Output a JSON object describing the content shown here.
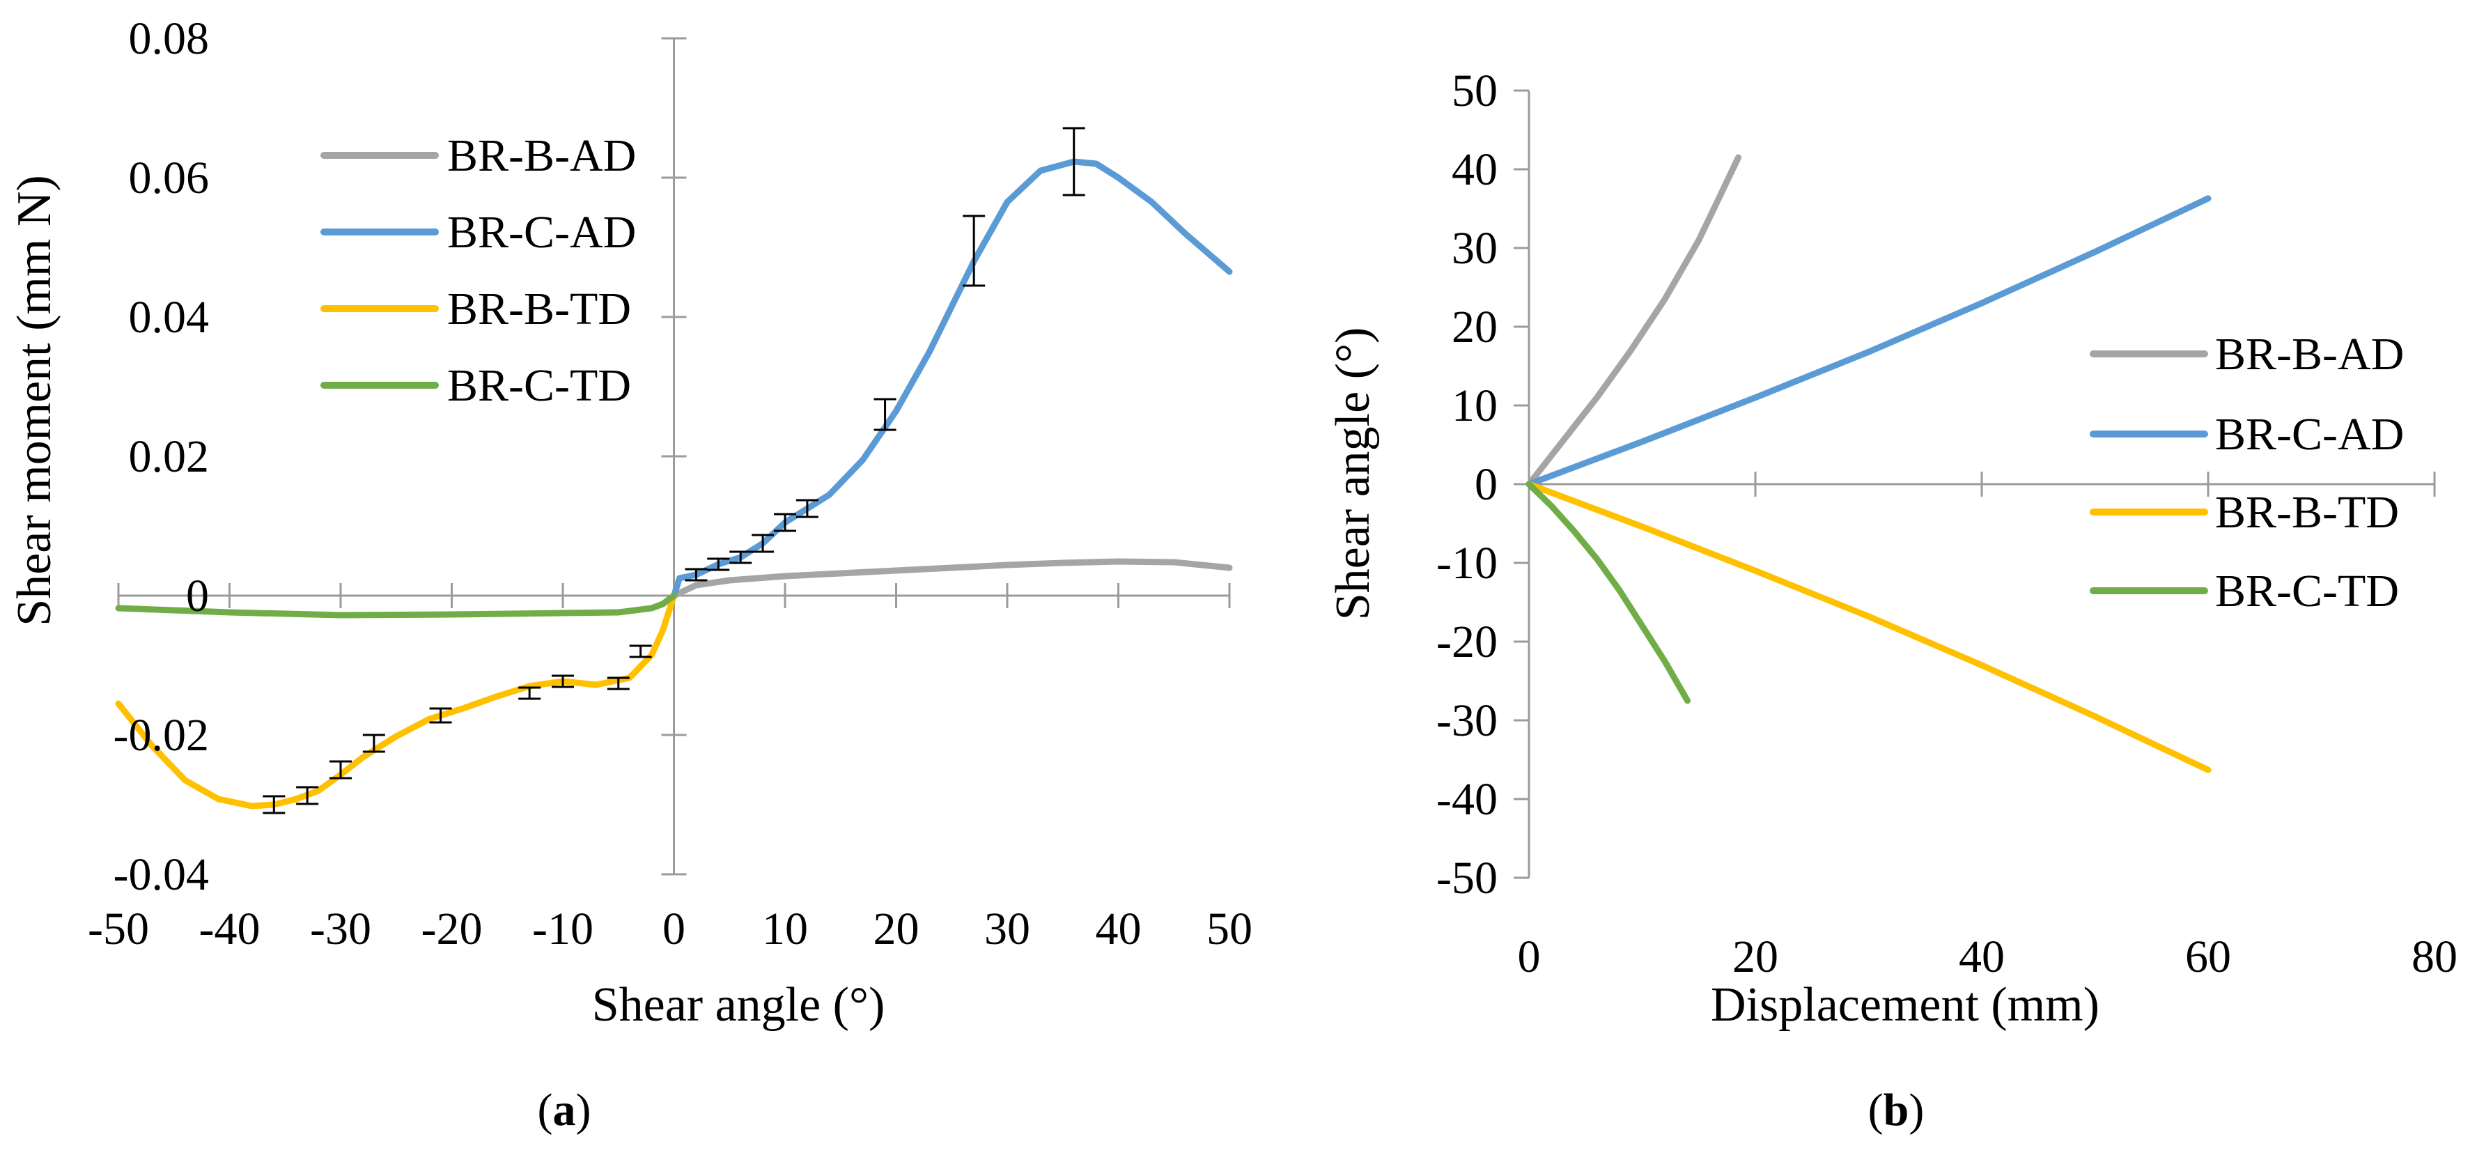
{
  "chart_data": [
    {
      "id": "a",
      "type": "line",
      "panel_label": "a",
      "xlabel": "Shear angle (°)",
      "ylabel": "Shear moment (mm N)",
      "xlim": [
        -50,
        50
      ],
      "ylim": [
        -0.04,
        0.08
      ],
      "xticks": [
        -50,
        -40,
        -30,
        -20,
        -10,
        0,
        10,
        20,
        30,
        40,
        50
      ],
      "yticks": [
        -0.04,
        -0.02,
        0,
        0.02,
        0.04,
        0.06,
        0.08
      ],
      "xtick_labels": [
        "-50",
        "-40",
        "-30",
        "-20",
        "-10",
        "0",
        "10",
        "20",
        "30",
        "40",
        "50"
      ],
      "ytick_labels": [
        "-0.04",
        "-0.02",
        "0",
        "0.02",
        "0.04",
        "0.06",
        "0.08"
      ],
      "legend_position": "top-left",
      "series": [
        {
          "name": "BR-B-AD",
          "color": "#a5a5a5",
          "x": [
            0,
            2,
            5,
            10,
            15,
            20,
            25,
            30,
            35,
            40,
            45,
            50
          ],
          "y": [
            0.0,
            0.0015,
            0.0022,
            0.0028,
            0.0032,
            0.0036,
            0.004,
            0.0044,
            0.0047,
            0.0049,
            0.0048,
            0.004
          ]
        },
        {
          "name": "BR-C-AD",
          "color": "#5b9bd5",
          "x": [
            0,
            0.5,
            2,
            4,
            6,
            8,
            10,
            12,
            14,
            17,
            20,
            23,
            27,
            30,
            33,
            36,
            38,
            40,
            43,
            46,
            50
          ],
          "y": [
            0.0,
            0.0025,
            0.003,
            0.0045,
            0.0055,
            0.0075,
            0.0105,
            0.0125,
            0.0145,
            0.0195,
            0.0265,
            0.035,
            0.048,
            0.0565,
            0.061,
            0.0623,
            0.062,
            0.06,
            0.0565,
            0.052,
            0.0465
          ],
          "error_x": [
            2,
            4,
            6,
            8,
            10,
            12,
            19,
            27,
            36
          ],
          "error_y": [
            0.003,
            0.0045,
            0.0055,
            0.0075,
            0.0105,
            0.0125,
            0.026,
            0.0495,
            0.0623
          ],
          "error_size": [
            0.0008,
            0.0008,
            0.0008,
            0.0012,
            0.0012,
            0.0012,
            0.0022,
            0.005,
            0.0048
          ]
        },
        {
          "name": "BR-B-TD",
          "color": "#ffc000",
          "x": [
            -50,
            -47,
            -44,
            -41,
            -38,
            -36,
            -34,
            -32,
            -30,
            -28,
            -25,
            -22,
            -19,
            -16,
            -13,
            -10,
            -7,
            -4,
            -2,
            -1,
            0
          ],
          "y": [
            -0.0155,
            -0.0215,
            -0.0265,
            -0.0292,
            -0.0302,
            -0.03,
            -0.0292,
            -0.028,
            -0.0257,
            -0.0232,
            -0.0202,
            -0.0177,
            -0.0162,
            -0.0145,
            -0.013,
            -0.0123,
            -0.0128,
            -0.0118,
            -0.0085,
            -0.005,
            0.0
          ],
          "error_x": [
            -36,
            -33,
            -30,
            -27,
            -21,
            -13,
            -10,
            -5,
            -3
          ],
          "error_y": [
            -0.03,
            -0.0287,
            -0.025,
            -0.0212,
            -0.0172,
            -0.014,
            -0.0123,
            -0.0126,
            -0.008
          ],
          "error_size": [
            0.0012,
            0.0012,
            0.0012,
            0.0012,
            0.001,
            0.0008,
            0.0008,
            0.0008,
            0.0008
          ]
        },
        {
          "name": "BR-C-TD",
          "color": "#70ad47",
          "x": [
            -50,
            -40,
            -30,
            -20,
            -10,
            -5,
            -2,
            -1,
            0
          ],
          "y": [
            -0.0018,
            -0.0024,
            -0.0028,
            -0.0027,
            -0.0025,
            -0.0024,
            -0.0018,
            -0.0012,
            0.0
          ]
        }
      ]
    },
    {
      "id": "b",
      "type": "line",
      "panel_label": "b",
      "xlabel": "Displacement (mm)",
      "ylabel": "Shear angle (°)",
      "xlim": [
        0,
        80
      ],
      "ylim": [
        -50,
        50
      ],
      "xticks": [
        0,
        20,
        40,
        60,
        80
      ],
      "yticks": [
        -50,
        -40,
        -30,
        -20,
        -10,
        0,
        10,
        20,
        30,
        40,
        50
      ],
      "xtick_labels": [
        "0",
        "20",
        "40",
        "60",
        "80"
      ],
      "ytick_labels": [
        "-50",
        "-40",
        "-30",
        "-20",
        "-10",
        "0",
        "10",
        "20",
        "30",
        "40",
        "50"
      ],
      "legend_position": "right",
      "series": [
        {
          "name": "BR-B-AD",
          "color": "#a5a5a5",
          "x": [
            0,
            3,
            6,
            9,
            12,
            15,
            17,
            18.5
          ],
          "y": [
            0,
            5.5,
            11,
            17,
            23.5,
            31,
            37,
            41.5
          ]
        },
        {
          "name": "BR-C-AD",
          "color": "#5b9bd5",
          "x": [
            0,
            10,
            20,
            30,
            40,
            50,
            60
          ],
          "y": [
            0,
            5.4,
            11,
            16.8,
            23,
            29.5,
            36.3
          ]
        },
        {
          "name": "BR-B-TD",
          "color": "#ffc000",
          "x": [
            0,
            10,
            20,
            30,
            40,
            50,
            60
          ],
          "y": [
            0,
            -5.4,
            -11,
            -16.8,
            -23,
            -29.5,
            -36.3
          ]
        },
        {
          "name": "BR-C-TD",
          "color": "#70ad47",
          "x": [
            0,
            2,
            4,
            6,
            8,
            10,
            12,
            14
          ],
          "y": [
            0,
            -2.8,
            -6,
            -9.5,
            -13.5,
            -18,
            -22.5,
            -27.5
          ]
        }
      ]
    }
  ]
}
